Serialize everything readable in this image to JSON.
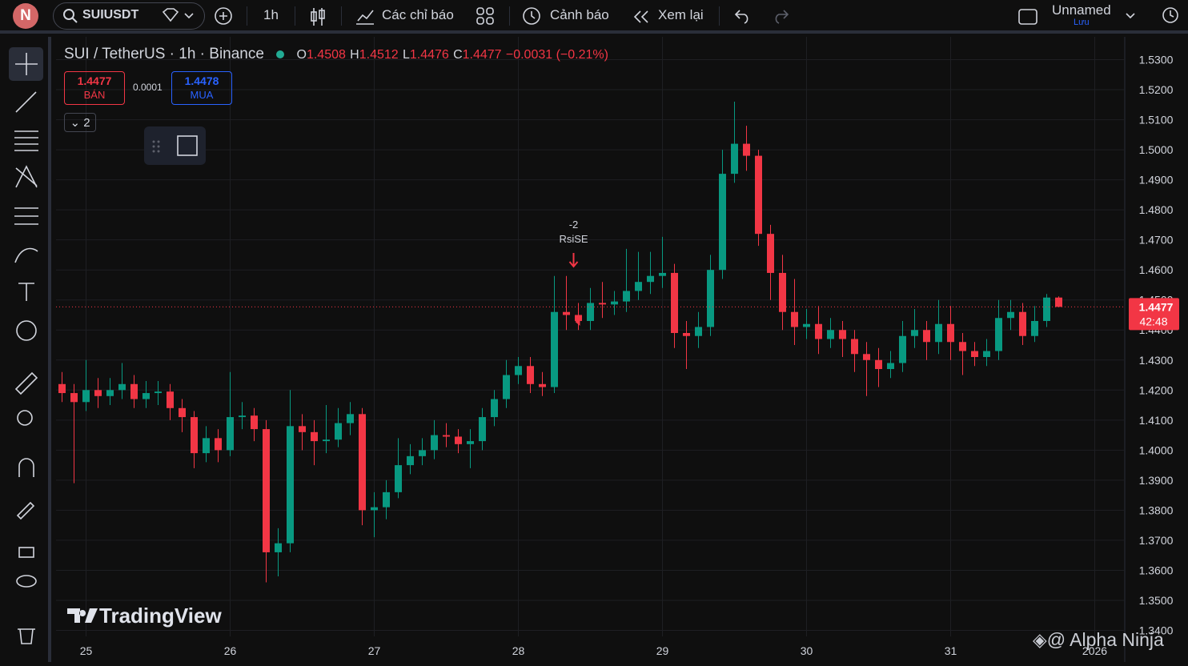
{
  "toolbar": {
    "avatar": "N",
    "symbol": "SUIUSDT",
    "interval": "1h",
    "indicators": "Các chỉ báo",
    "alerts": "Cảnh báo",
    "replay": "Xem lại",
    "layout_name": "Unnamed",
    "save": "Lưu"
  },
  "trade": {
    "sell_price": "1.4477",
    "sell_label": "BÁN",
    "spread": "0.0001",
    "buy_price": "1.4478",
    "buy_label": "MUA",
    "collapse_count": "2"
  },
  "brand": "TradingView",
  "watermark": "@ Alpha Ninja",
  "chart_data": {
    "type": "candlestick",
    "title": "SUI / TetherUS · 1h · Binance",
    "ohlc_labels": [
      "O",
      "H",
      "L",
      "C"
    ],
    "change": "−0.0031 (−0.21%)",
    "last_price": 1.4477,
    "countdown": "42:48",
    "annotation": {
      "value": "-2",
      "label": "RsiSE"
    },
    "up_color": "#089981",
    "down_color": "#f23645",
    "open": [
      1.422,
      1.419,
      1.416,
      1.42,
      1.418,
      1.42,
      1.422,
      1.417,
      1.419,
      1.4195,
      1.414,
      1.411,
      1.399,
      1.404,
      1.4,
      1.411,
      1.4115,
      1.407,
      1.366,
      1.369,
      1.408,
      1.406,
      1.403,
      1.4035,
      1.409,
      1.412,
      1.38,
      1.381,
      1.386,
      1.395,
      1.398,
      1.4,
      1.405,
      1.4045,
      1.402,
      1.403,
      1.411,
      1.417,
      1.425,
      1.428,
      1.422,
      1.421,
      1.446,
      1.445,
      1.443,
      1.449,
      1.4485,
      1.4495,
      1.453,
      1.456,
      1.458,
      1.459,
      1.439,
      1.438,
      1.441,
      1.46,
      1.492,
      1.502,
      1.498,
      1.472,
      1.459,
      1.446,
      1.441,
      1.442,
      1.437,
      1.44,
      1.437,
      1.432,
      1.43,
      1.427,
      1.429,
      1.438,
      1.44,
      1.436,
      1.442,
      1.436,
      1.433,
      1.431,
      1.433,
      1.444,
      1.446,
      1.438,
      1.443,
      1.4508
    ],
    "high": [
      1.426,
      1.422,
      1.43,
      1.424,
      1.424,
      1.429,
      1.425,
      1.423,
      1.423,
      1.422,
      1.417,
      1.413,
      1.408,
      1.407,
      1.426,
      1.416,
      1.414,
      1.41,
      1.374,
      1.42,
      1.412,
      1.41,
      1.415,
      1.414,
      1.416,
      1.414,
      1.386,
      1.39,
      1.404,
      1.402,
      1.404,
      1.41,
      1.409,
      1.407,
      1.407,
      1.414,
      1.42,
      1.43,
      1.431,
      1.431,
      1.426,
      1.458,
      1.458,
      1.449,
      1.454,
      1.456,
      1.453,
      1.467,
      1.466,
      1.466,
      1.471,
      1.462,
      1.443,
      1.446,
      1.465,
      1.5,
      1.516,
      1.508,
      1.5,
      1.475,
      1.465,
      1.457,
      1.447,
      1.448,
      1.444,
      1.443,
      1.44,
      1.436,
      1.434,
      1.433,
      1.443,
      1.447,
      1.443,
      1.45,
      1.448,
      1.439,
      1.436,
      1.437,
      1.45,
      1.45,
      1.449,
      1.448,
      1.452,
      1.4512
    ],
    "low": [
      1.416,
      1.389,
      1.413,
      1.414,
      1.415,
      1.417,
      1.414,
      1.414,
      1.415,
      1.41,
      1.406,
      1.394,
      1.396,
      1.396,
      1.398,
      1.407,
      1.403,
      1.356,
      1.358,
      1.366,
      1.4,
      1.395,
      1.399,
      1.401,
      1.405,
      1.375,
      1.371,
      1.377,
      1.384,
      1.392,
      1.395,
      1.397,
      1.401,
      1.399,
      1.394,
      1.4,
      1.408,
      1.414,
      1.422,
      1.419,
      1.418,
      1.419,
      1.44,
      1.44,
      1.44,
      1.444,
      1.445,
      1.446,
      1.45,
      1.452,
      1.454,
      1.434,
      1.427,
      1.434,
      1.438,
      1.457,
      1.489,
      1.493,
      1.468,
      1.45,
      1.44,
      1.435,
      1.437,
      1.432,
      1.434,
      1.431,
      1.426,
      1.418,
      1.421,
      1.424,
      1.426,
      1.434,
      1.43,
      1.432,
      1.43,
      1.425,
      1.428,
      1.428,
      1.43,
      1.44,
      1.435,
      1.436,
      1.441,
      1.4476
    ],
    "close": [
      1.419,
      1.416,
      1.42,
      1.418,
      1.42,
      1.422,
      1.417,
      1.419,
      1.4195,
      1.414,
      1.411,
      1.399,
      1.404,
      1.4,
      1.411,
      1.4115,
      1.407,
      1.366,
      1.369,
      1.408,
      1.406,
      1.403,
      1.4035,
      1.409,
      1.412,
      1.38,
      1.381,
      1.386,
      1.395,
      1.398,
      1.4,
      1.405,
      1.4045,
      1.402,
      1.403,
      1.411,
      1.417,
      1.425,
      1.428,
      1.422,
      1.421,
      1.446,
      1.445,
      1.443,
      1.449,
      1.4485,
      1.4495,
      1.453,
      1.456,
      1.458,
      1.459,
      1.439,
      1.438,
      1.441,
      1.46,
      1.492,
      1.502,
      1.498,
      1.472,
      1.459,
      1.446,
      1.441,
      1.442,
      1.437,
      1.44,
      1.437,
      1.432,
      1.43,
      1.427,
      1.429,
      1.438,
      1.44,
      1.436,
      1.442,
      1.436,
      1.433,
      1.431,
      1.433,
      1.444,
      1.446,
      1.438,
      1.443,
      1.4508,
      1.4477
    ],
    "xlim": [
      -0.5,
      88.5
    ],
    "xticks": [
      {
        "value": 2,
        "label": "25"
      },
      {
        "value": 14,
        "label": "26"
      },
      {
        "value": 26,
        "label": "27"
      },
      {
        "value": 38,
        "label": "28"
      },
      {
        "value": 50,
        "label": "29"
      },
      {
        "value": 62,
        "label": "30"
      },
      {
        "value": 74,
        "label": "31"
      },
      {
        "value": 86,
        "label": "2026"
      }
    ],
    "ylim": [
      1.338,
      1.536
    ],
    "yticks": [
      {
        "value": 1.53,
        "label": "1.5300"
      },
      {
        "value": 1.52,
        "label": "1.5200"
      },
      {
        "value": 1.51,
        "label": "1.5100"
      },
      {
        "value": 1.5,
        "label": "1.5000"
      },
      {
        "value": 1.49,
        "label": "1.4900"
      },
      {
        "value": 1.48,
        "label": "1.4800"
      },
      {
        "value": 1.47,
        "label": "1.4700"
      },
      {
        "value": 1.46,
        "label": "1.4600"
      },
      {
        "value": 1.45,
        "label": "1.4500"
      },
      {
        "value": 1.44,
        "label": "1.4400"
      },
      {
        "value": 1.43,
        "label": "1.4300"
      },
      {
        "value": 1.42,
        "label": "1.4200"
      },
      {
        "value": 1.41,
        "label": "1.4100"
      },
      {
        "value": 1.4,
        "label": "1.4000"
      },
      {
        "value": 1.39,
        "label": "1.3900"
      },
      {
        "value": 1.38,
        "label": "1.3800"
      },
      {
        "value": 1.37,
        "label": "1.3700"
      },
      {
        "value": 1.36,
        "label": "1.3600"
      },
      {
        "value": 1.35,
        "label": "1.3500"
      },
      {
        "value": 1.34,
        "label": "1.3400"
      }
    ],
    "grid": true
  }
}
